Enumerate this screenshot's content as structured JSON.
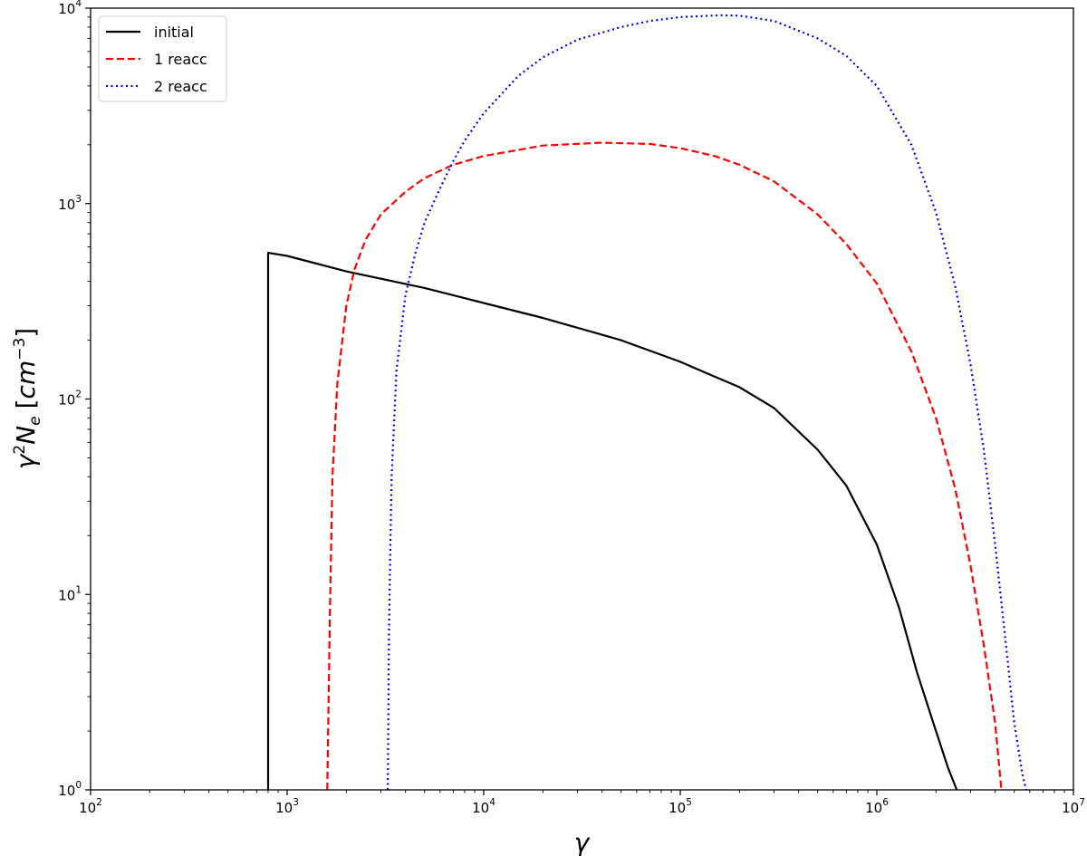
{
  "chart_data": {
    "type": "line",
    "xscale": "log",
    "yscale": "log",
    "xlim": [
      100,
      10000000
    ],
    "ylim": [
      1,
      10000
    ],
    "xlabel": "γ",
    "ylabel": "γ²N_e [cm⁻³]",
    "xlabel_text": "γ",
    "ylabel_parts": {
      "gamma": "γ",
      "gamma_exp": "2",
      "n": "N",
      "n_sub": "e",
      "unit_open": "[",
      "unit": "cm",
      "unit_exp": "−3",
      "unit_close": "]"
    },
    "x_ticks": [
      {
        "base": "10",
        "exp": "2",
        "value": 100
      },
      {
        "base": "10",
        "exp": "3",
        "value": 1000
      },
      {
        "base": "10",
        "exp": "4",
        "value": 10000
      },
      {
        "base": "10",
        "exp": "5",
        "value": 100000
      },
      {
        "base": "10",
        "exp": "6",
        "value": 1000000
      },
      {
        "base": "10",
        "exp": "7",
        "value": 10000000
      }
    ],
    "y_ticks": [
      {
        "base": "10",
        "exp": "0",
        "value": 1
      },
      {
        "base": "10",
        "exp": "1",
        "value": 10
      },
      {
        "base": "10",
        "exp": "2",
        "value": 100
      },
      {
        "base": "10",
        "exp": "3",
        "value": 1000
      },
      {
        "base": "10",
        "exp": "4",
        "value": 10000
      }
    ],
    "legend_position": "upper-left",
    "grid": false,
    "series": [
      {
        "name": "initial",
        "color": "#000000",
        "style": "solid",
        "x": [
          800,
          800,
          1000,
          2000,
          5000,
          10000,
          20000,
          50000,
          100000,
          150000,
          200000,
          300000,
          500000,
          700000,
          1000000,
          1300000,
          1600000,
          2000000,
          2300000,
          2550000
        ],
        "y": [
          1,
          560,
          540,
          450,
          370,
          310,
          260,
          200,
          155,
          130,
          115,
          90,
          55,
          36,
          18,
          8.5,
          4.0,
          2.0,
          1.3,
          1.0
        ]
      },
      {
        "name": "1 reacc",
        "color": "#ff0000",
        "style": "dashed",
        "x": [
          1600,
          1650,
          1700,
          1800,
          2000,
          2200,
          2500,
          3000,
          4000,
          5000,
          7000,
          10000,
          20000,
          40000,
          70000,
          100000,
          150000,
          200000,
          300000,
          500000,
          700000,
          1000000,
          1500000,
          2000000,
          2500000,
          3000000,
          3500000,
          4000000,
          4300000
        ],
        "y": [
          1,
          8,
          40,
          120,
          300,
          460,
          650,
          880,
          1150,
          1350,
          1580,
          1750,
          1980,
          2050,
          2020,
          1920,
          1750,
          1580,
          1300,
          880,
          620,
          390,
          175,
          80,
          35,
          14,
          5.5,
          2.2,
          1.0
        ]
      },
      {
        "name": "2 reacc",
        "color": "#0000ff",
        "style": "dotted",
        "x": [
          3250,
          3300,
          3400,
          3600,
          4000,
          4500,
          5000,
          6000,
          7000,
          8000,
          10000,
          15000,
          20000,
          30000,
          50000,
          70000,
          100000,
          160000,
          200000,
          300000,
          500000,
          700000,
          1000000,
          1500000,
          2000000,
          2500000,
          3000000,
          3500000,
          4000000,
          4500000,
          5000000,
          5500000,
          5750000
        ],
        "y": [
          1,
          7,
          40,
          140,
          340,
          560,
          800,
          1200,
          1650,
          2100,
          2900,
          4500,
          5600,
          6900,
          8000,
          8600,
          9000,
          9200,
          9150,
          8600,
          7000,
          5700,
          4000,
          2000,
          900,
          380,
          150,
          55,
          18,
          6,
          2.2,
          1.2,
          1.0
        ]
      }
    ]
  }
}
